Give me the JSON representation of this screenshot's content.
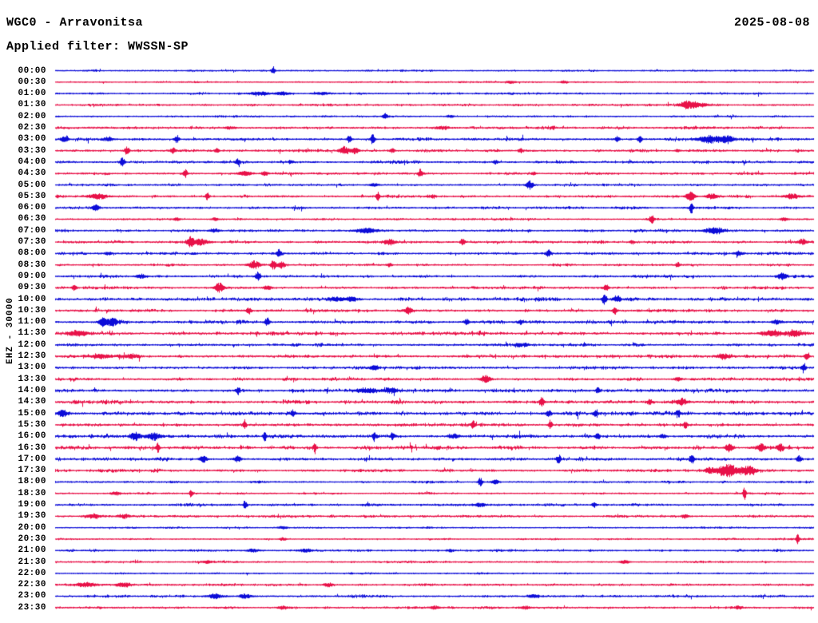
{
  "header": {
    "station_title": "WGC0 - Arravonitsa",
    "date": "2025-08-08",
    "filter_line": "Applied filter: WWSSN-SP"
  },
  "axis": {
    "vertical_label": "EHZ - 30000"
  },
  "palette": {
    "trace_blue": "#0c0cd8",
    "trace_red": "#e81148",
    "text": "#000000",
    "background": "#ffffff"
  },
  "chart_data": {
    "type": "line",
    "subtype": "helicorder-seismogram",
    "title": "WGC0 - Arravonitsa",
    "date": "2025-08-08",
    "filter": "WWSSN-SP",
    "channel_scale_label": "EHZ - 30000",
    "row_interval_minutes": 30,
    "trace_color_cycle": [
      "blue",
      "red"
    ],
    "rows": [
      {
        "time": "00:00",
        "color": "blue",
        "noise": 0.5,
        "events": [
          [
            0.287,
            5,
            1.5
          ]
        ]
      },
      {
        "time": "00:30",
        "color": "red",
        "noise": 0.4,
        "events": [
          [
            0.6,
            1.5,
            4
          ],
          [
            0.67,
            1.5,
            3
          ]
        ]
      },
      {
        "time": "01:00",
        "color": "blue",
        "noise": 0.5,
        "events": [
          [
            0.27,
            2,
            8
          ],
          [
            0.3,
            2,
            6
          ],
          [
            0.35,
            1.5,
            5
          ]
        ]
      },
      {
        "time": "01:30",
        "color": "red",
        "noise": 0.6,
        "events": [
          [
            0.833,
            3.5,
            6
          ],
          [
            0.845,
            2.5,
            10
          ]
        ]
      },
      {
        "time": "02:00",
        "color": "blue",
        "noise": 0.45,
        "events": [
          [
            0.434,
            3.5,
            2
          ],
          [
            0.52,
            1.5,
            3
          ]
        ]
      },
      {
        "time": "02:30",
        "color": "red",
        "noise": 0.8,
        "events": [
          [
            0.51,
            1.8,
            5
          ],
          [
            0.23,
            1.5,
            4
          ]
        ]
      },
      {
        "time": "03:00",
        "color": "blue",
        "noise": 0.9,
        "events": [
          [
            0.012,
            4,
            3
          ],
          [
            0.07,
            2.5,
            4
          ],
          [
            0.16,
            5,
            2
          ],
          [
            0.387,
            4.5,
            2
          ],
          [
            0.418,
            6,
            2
          ],
          [
            0.74,
            3.5,
            2
          ],
          [
            0.77,
            4,
            2
          ],
          [
            0.862,
            4.5,
            10
          ],
          [
            0.885,
            4,
            6
          ]
        ]
      },
      {
        "time": "03:30",
        "color": "red",
        "noise": 0.8,
        "events": [
          [
            0.094,
            4.5,
            2
          ],
          [
            0.155,
            3.5,
            2
          ],
          [
            0.213,
            2.5,
            2
          ],
          [
            0.381,
            5.5,
            4
          ],
          [
            0.395,
            4,
            3
          ],
          [
            0.444,
            2.5,
            2
          ],
          [
            0.613,
            3,
            2
          ],
          [
            0.82,
            2,
            2
          ]
        ]
      },
      {
        "time": "04:00",
        "color": "blue",
        "noise": 0.9,
        "events": [
          [
            0.088,
            6,
            2
          ],
          [
            0.24,
            4,
            2
          ],
          [
            0.31,
            2,
            2
          ],
          [
            0.58,
            2.5,
            2
          ]
        ]
      },
      {
        "time": "04:30",
        "color": "red",
        "noise": 0.7,
        "events": [
          [
            0.171,
            5,
            2
          ],
          [
            0.25,
            2.5,
            6
          ],
          [
            0.276,
            2.5,
            3
          ],
          [
            0.481,
            6,
            2
          ],
          [
            0.63,
            2,
            2
          ]
        ]
      },
      {
        "time": "05:00",
        "color": "blue",
        "noise": 0.6,
        "events": [
          [
            0.625,
            5.5,
            3
          ],
          [
            0.42,
            1.8,
            4
          ]
        ]
      },
      {
        "time": "05:30",
        "color": "red",
        "noise": 0.7,
        "events": [
          [
            0.055,
            3,
            8
          ],
          [
            0.2,
            5,
            1.5
          ],
          [
            0.425,
            6,
            1.5
          ],
          [
            0.498,
            2,
            2
          ],
          [
            0.837,
            5,
            4
          ],
          [
            0.865,
            3,
            5
          ],
          [
            0.97,
            3,
            6
          ]
        ]
      },
      {
        "time": "06:00",
        "color": "blue",
        "noise": 0.8,
        "events": [
          [
            0.053,
            3.5,
            3
          ],
          [
            0.838,
            7,
            1.5
          ]
        ]
      },
      {
        "time": "06:30",
        "color": "red",
        "noise": 0.5,
        "events": [
          [
            0.16,
            1.8,
            3
          ],
          [
            0.21,
            1.8,
            3
          ],
          [
            0.786,
            5.5,
            2
          ],
          [
            0.96,
            2.5,
            3
          ]
        ]
      },
      {
        "time": "07:00",
        "color": "blue",
        "noise": 0.7,
        "events": [
          [
            0.21,
            2,
            4
          ],
          [
            0.41,
            3,
            8
          ],
          [
            0.868,
            3,
            9
          ]
        ]
      },
      {
        "time": "07:30",
        "color": "red",
        "noise": 0.8,
        "events": [
          [
            0.178,
            7,
            3
          ],
          [
            0.192,
            4,
            6
          ],
          [
            0.44,
            3,
            5
          ],
          [
            0.537,
            4.5,
            2
          ],
          [
            0.76,
            2.5,
            2
          ],
          [
            0.985,
            3,
            4
          ]
        ]
      },
      {
        "time": "08:00",
        "color": "blue",
        "noise": 0.8,
        "events": [
          [
            0.07,
            2,
            3
          ],
          [
            0.294,
            5,
            2
          ],
          [
            0.65,
            4.5,
            2
          ],
          [
            0.9,
            2.5,
            3
          ]
        ]
      },
      {
        "time": "08:30",
        "color": "red",
        "noise": 0.6,
        "events": [
          [
            0.262,
            5,
            5
          ],
          [
            0.287,
            5.5,
            2
          ],
          [
            0.298,
            4,
            3
          ],
          [
            0.44,
            2,
            2
          ],
          [
            0.82,
            2.5,
            2
          ]
        ]
      },
      {
        "time": "09:00",
        "color": "blue",
        "noise": 0.8,
        "events": [
          [
            0.113,
            2.5,
            4
          ],
          [
            0.267,
            6.5,
            2
          ],
          [
            0.957,
            3.5,
            4
          ]
        ]
      },
      {
        "time": "09:30",
        "color": "red",
        "noise": 0.8,
        "events": [
          [
            0.025,
            3.5,
            2
          ],
          [
            0.216,
            6,
            4
          ],
          [
            0.28,
            3,
            3
          ],
          [
            0.726,
            4.5,
            2
          ]
        ]
      },
      {
        "time": "10:00",
        "color": "blue",
        "noise": 1.0,
        "events": [
          [
            0.372,
            2.5,
            6
          ],
          [
            0.39,
            2.5,
            4
          ],
          [
            0.723,
            7,
            2
          ],
          [
            0.74,
            4,
            3
          ]
        ]
      },
      {
        "time": "10:30",
        "color": "red",
        "noise": 0.8,
        "events": [
          [
            0.255,
            4.5,
            2
          ],
          [
            0.465,
            4.5,
            3
          ],
          [
            0.737,
            4.5,
            2
          ]
        ]
      },
      {
        "time": "11:00",
        "color": "blue",
        "noise": 1.0,
        "events": [
          [
            0.062,
            6,
            3
          ],
          [
            0.075,
            5,
            5
          ],
          [
            0.279,
            5.5,
            2
          ],
          [
            0.542,
            3.5,
            2
          ],
          [
            0.613,
            2.5,
            2
          ],
          [
            0.95,
            2.5,
            4
          ]
        ]
      },
      {
        "time": "11:30",
        "color": "red",
        "noise": 1.1,
        "events": [
          [
            0.03,
            3,
            8
          ],
          [
            0.945,
            3.5,
            8
          ],
          [
            0.975,
            3.5,
            6
          ]
        ]
      },
      {
        "time": "12:00",
        "color": "blue",
        "noise": 0.8,
        "events": [
          [
            0.61,
            2,
            3
          ],
          [
            0.62,
            2,
            3
          ]
        ]
      },
      {
        "time": "12:30",
        "color": "red",
        "noise": 1.0,
        "events": [
          [
            0.06,
            2.5,
            8
          ],
          [
            0.1,
            2.5,
            6
          ],
          [
            0.88,
            2.5,
            6
          ],
          [
            0.99,
            4.5,
            2
          ]
        ]
      },
      {
        "time": "13:00",
        "color": "blue",
        "noise": 1.0,
        "events": [
          [
            0.42,
            2.5,
            4
          ],
          [
            0.986,
            6,
            2
          ]
        ]
      },
      {
        "time": "13:30",
        "color": "red",
        "noise": 1.0,
        "events": [
          [
            0.567,
            4.5,
            4
          ],
          [
            0.82,
            2.5,
            3
          ]
        ]
      },
      {
        "time": "14:00",
        "color": "blue",
        "noise": 1.0,
        "events": [
          [
            0.24,
            5,
            2
          ],
          [
            0.41,
            3,
            8
          ],
          [
            0.44,
            3,
            6
          ],
          [
            0.715,
            3.5,
            2
          ]
        ]
      },
      {
        "time": "14:30",
        "color": "red",
        "noise": 1.1,
        "events": [
          [
            0.641,
            6,
            2
          ],
          [
            0.783,
            3.5,
            2
          ],
          [
            0.825,
            3.5,
            5
          ]
        ]
      },
      {
        "time": "15:00",
        "color": "blue",
        "noise": 1.2,
        "events": [
          [
            0.01,
            4,
            4
          ],
          [
            0.313,
            5,
            2
          ],
          [
            0.65,
            4.5,
            2
          ],
          [
            0.712,
            4,
            2
          ],
          [
            0.82,
            4,
            2
          ]
        ]
      },
      {
        "time": "15:30",
        "color": "red",
        "noise": 1.0,
        "events": [
          [
            0.249,
            6,
            1.5
          ],
          [
            0.55,
            4.5,
            2
          ],
          [
            0.652,
            7,
            1.5
          ],
          [
            0.83,
            4,
            2
          ]
        ]
      },
      {
        "time": "16:00",
        "color": "blue",
        "noise": 1.1,
        "events": [
          [
            0.105,
            6,
            4
          ],
          [
            0.13,
            5,
            6
          ],
          [
            0.276,
            6.5,
            1.5
          ],
          [
            0.42,
            5.5,
            1.5
          ],
          [
            0.444,
            5.5,
            1.5
          ],
          [
            0.525,
            2.5,
            5
          ],
          [
            0.714,
            3.5,
            2
          ],
          [
            0.8,
            2.5,
            3
          ]
        ]
      },
      {
        "time": "16:30",
        "color": "red",
        "noise": 1.1,
        "events": [
          [
            0.135,
            6.5,
            1.5
          ],
          [
            0.342,
            4.5,
            1.5
          ],
          [
            0.888,
            7,
            3
          ],
          [
            0.93,
            5,
            3
          ],
          [
            0.955,
            4,
            3
          ]
        ]
      },
      {
        "time": "17:00",
        "color": "blue",
        "noise": 1.0,
        "events": [
          [
            0.195,
            4,
            3
          ],
          [
            0.24,
            3.5,
            3
          ],
          [
            0.663,
            4.5,
            2
          ],
          [
            0.839,
            5,
            2
          ],
          [
            0.98,
            4.5,
            2
          ]
        ]
      },
      {
        "time": "17:30",
        "color": "red",
        "noise": 0.8,
        "events": [
          [
            0.862,
            4,
            4
          ],
          [
            0.885,
            8,
            9
          ],
          [
            0.912,
            6,
            6
          ]
        ]
      },
      {
        "time": "18:00",
        "color": "blue",
        "noise": 0.6,
        "events": [
          [
            0.56,
            5,
            2
          ],
          [
            0.58,
            2.5,
            3
          ]
        ]
      },
      {
        "time": "18:30",
        "color": "red",
        "noise": 0.55,
        "events": [
          [
            0.08,
            2,
            4
          ],
          [
            0.179,
            5.5,
            1.5
          ],
          [
            0.908,
            8,
            1.5
          ]
        ]
      },
      {
        "time": "19:00",
        "color": "blue",
        "noise": 0.7,
        "events": [
          [
            0.25,
            6.5,
            1.5
          ],
          [
            0.56,
            2.5,
            4
          ],
          [
            0.71,
            3,
            2
          ]
        ]
      },
      {
        "time": "19:30",
        "color": "red",
        "noise": 0.7,
        "events": [
          [
            0.05,
            2.5,
            6
          ],
          [
            0.09,
            2.5,
            5
          ],
          [
            0.83,
            2,
            3
          ]
        ]
      },
      {
        "time": "20:00",
        "color": "blue",
        "noise": 0.45,
        "events": [
          [
            0.3,
            1.5,
            4
          ]
        ]
      },
      {
        "time": "20:30",
        "color": "red",
        "noise": 0.5,
        "events": [
          [
            0.3,
            1.5,
            3
          ],
          [
            0.978,
            5.5,
            1.5
          ]
        ]
      },
      {
        "time": "21:00",
        "color": "blue",
        "noise": 0.6,
        "events": [
          [
            0.26,
            2,
            5
          ],
          [
            0.33,
            2,
            5
          ],
          [
            0.52,
            1.8,
            3
          ]
        ]
      },
      {
        "time": "21:30",
        "color": "red",
        "noise": 0.55,
        "events": [
          [
            0.2,
            1.8,
            4
          ],
          [
            0.75,
            1.8,
            4
          ]
        ]
      },
      {
        "time": "22:00",
        "color": "blue",
        "noise": 0.4,
        "events": []
      },
      {
        "time": "22:30",
        "color": "red",
        "noise": 0.6,
        "events": [
          [
            0.04,
            2.5,
            8
          ],
          [
            0.09,
            2.5,
            6
          ],
          [
            0.36,
            2,
            4
          ]
        ]
      },
      {
        "time": "23:00",
        "color": "blue",
        "noise": 0.7,
        "events": [
          [
            0.21,
            2.8,
            6
          ],
          [
            0.25,
            2.8,
            5
          ],
          [
            0.63,
            2,
            4
          ]
        ]
      },
      {
        "time": "23:30",
        "color": "red",
        "noise": 0.6,
        "events": [
          [
            0.3,
            2,
            4
          ],
          [
            0.5,
            2,
            4
          ],
          [
            0.62,
            2,
            4
          ],
          [
            0.9,
            2,
            3
          ]
        ]
      }
    ]
  }
}
